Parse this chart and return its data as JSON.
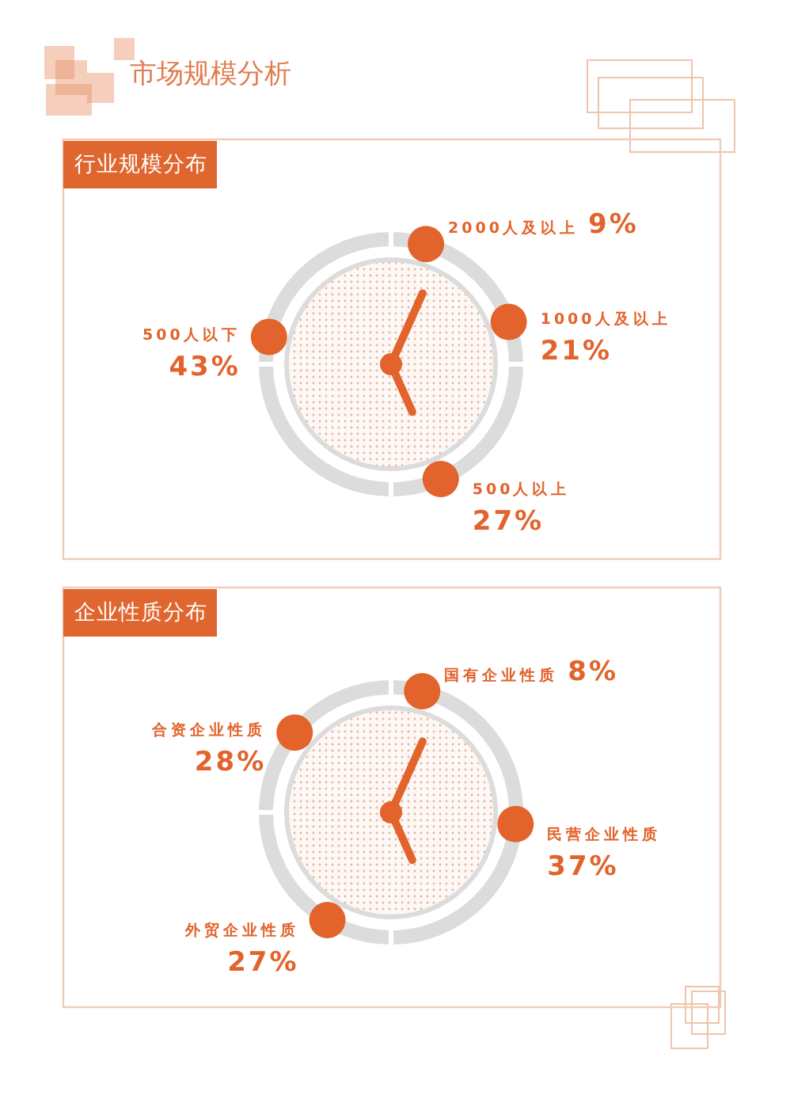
{
  "chart_data": [
    {
      "type": "other",
      "title": "市场规模分析",
      "subtitle": "行业规模分布",
      "categories": [
        "2000人及以上",
        "1000人及以上",
        "500人以上",
        "500人以下"
      ],
      "values": [
        9,
        21,
        27,
        43
      ],
      "value_labels": [
        "9%",
        "21%",
        "27%",
        "43%"
      ],
      "colors": [
        "#e2632b",
        "#e2632b",
        "#e2632b",
        "#e2632b"
      ]
    },
    {
      "type": "other",
      "title": "企业性质分布",
      "categories": [
        "国有企业性质",
        "民营企业性质",
        "外贸企业性质",
        "合资企业性质"
      ],
      "values": [
        8,
        37,
        27,
        28
      ],
      "value_labels": [
        "8%",
        "37%",
        "27%",
        "28%"
      ],
      "colors": [
        "#e2632b",
        "#e2632b",
        "#e2632b",
        "#e2632b"
      ]
    }
  ]
}
